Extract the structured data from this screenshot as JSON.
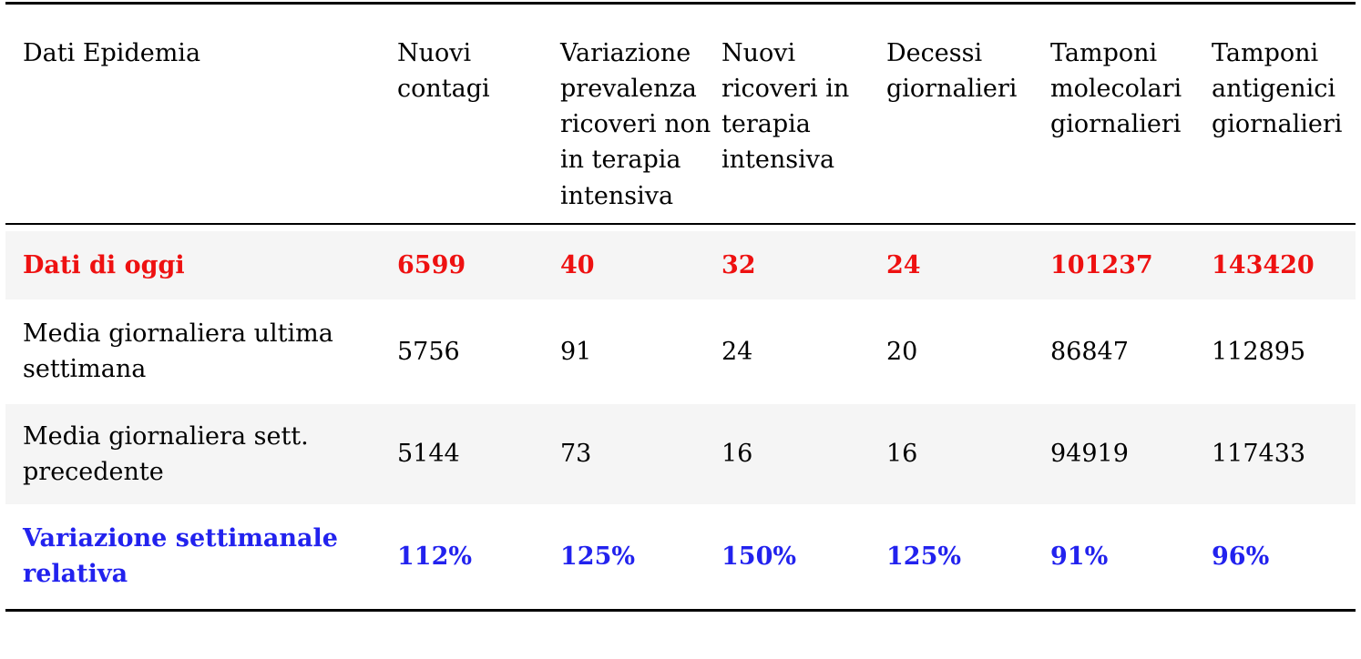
{
  "chart_data": {
    "type": "table",
    "title": "Dati Epidemia",
    "columns": [
      "Dati Epidemia",
      "Nuovi contagi",
      "Variazione prevalenza ricoveri non in terapia intensiva",
      "Nuovi ricoveri in terapia intensiva",
      "Decessi giornalieri",
      "Tamponi molecolari giornalieri",
      "Tamponi antigenici giornalieri"
    ],
    "rows": [
      {
        "label": "Dati di oggi",
        "values": [
          "6599",
          "40",
          "32",
          "24",
          "101237",
          "143420"
        ],
        "emphasis": "today"
      },
      {
        "label": "Media giornaliera ultima settimana",
        "values": [
          "5756",
          "91",
          "24",
          "20",
          "86847",
          "112895"
        ],
        "emphasis": "none"
      },
      {
        "label": "Media giornaliera sett. precedente",
        "values": [
          "5144",
          "73",
          "16",
          "16",
          "94919",
          "117433"
        ],
        "emphasis": "none"
      },
      {
        "label": "Variazione settimanale relativa",
        "values": [
          "112%",
          "125%",
          "150%",
          "125%",
          "91%",
          "96%"
        ],
        "emphasis": "variation"
      }
    ],
    "colors": {
      "today_text": "#ee1111",
      "variation_text": "#2222ee",
      "stripe_background": "#f5f5f5",
      "rule": "#000000",
      "body_text": "#000000"
    },
    "layout_hints": {
      "grid": "horizontal rules only (top, under header, bottom)",
      "striped_rows": [
        0,
        2
      ]
    }
  }
}
